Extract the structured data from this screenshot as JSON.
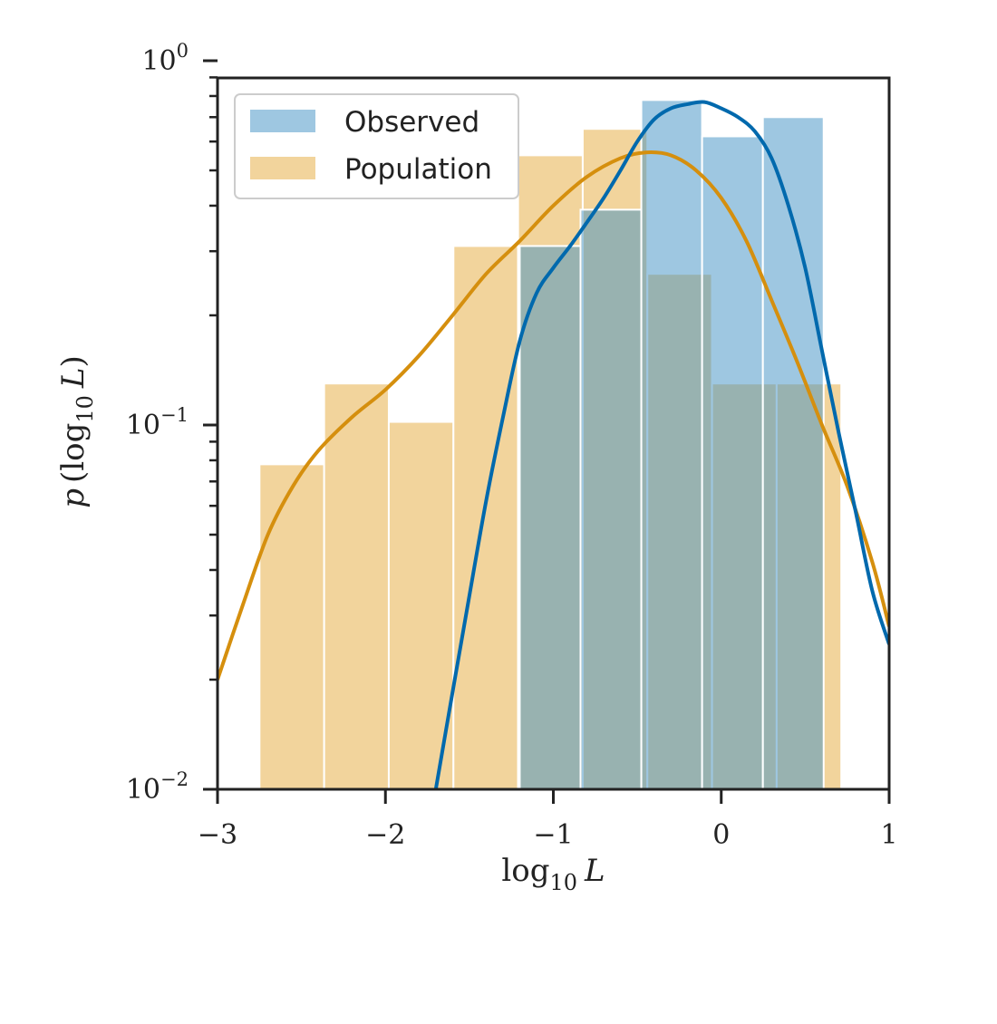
{
  "chart_data": {
    "type": "bar",
    "xlabel": {
      "base": "log",
      "sub": "10",
      "var": "L"
    },
    "ylabel": {
      "func": "p",
      "base": "log",
      "sub": "10",
      "var": "L"
    },
    "xlim": [
      -3,
      1
    ],
    "ylim": [
      0.01,
      1
    ],
    "yscale": "log",
    "grid": false,
    "legend_position": "top-left",
    "x_ticks": [
      {
        "value": -3,
        "label": "−3"
      },
      {
        "value": -2,
        "label": "−2"
      },
      {
        "value": -1,
        "label": "−1"
      },
      {
        "value": 0,
        "label": "0"
      },
      {
        "value": 1,
        "label": "1"
      }
    ],
    "y_ticks": [
      {
        "value": 1,
        "base": "10",
        "exp": "0"
      },
      {
        "value": 0.1,
        "base": "10",
        "exp": "−1"
      },
      {
        "value": 0.01,
        "base": "10",
        "exp": "−2"
      }
    ],
    "series": [
      {
        "name": "Population",
        "kind": "histogram",
        "color": "#e8b04a",
        "opacity": 0.55,
        "bin_edges": [
          -2.75,
          -2.365,
          -1.98,
          -1.595,
          -1.21,
          -0.825,
          -0.44,
          -0.055,
          0.33,
          0.715
        ],
        "values": [
          0.078,
          0.13,
          0.102,
          0.31,
          0.55,
          0.65,
          0.26,
          0.13,
          0.13
        ]
      },
      {
        "name": "Observed",
        "kind": "histogram",
        "color": "#3d8fc4",
        "opacity": 0.5,
        "bin_edges": [
          -1.2,
          -0.838,
          -0.476,
          -0.114,
          0.248,
          0.61
        ],
        "values": [
          0.31,
          0.39,
          0.78,
          0.62,
          0.7
        ]
      }
    ],
    "curves": [
      {
        "name": "Population",
        "color": "#d58f0e",
        "points": [
          [
            -3.0,
            0.02
          ],
          [
            -2.85,
            0.032
          ],
          [
            -2.7,
            0.05
          ],
          [
            -2.55,
            0.068
          ],
          [
            -2.4,
            0.085
          ],
          [
            -2.2,
            0.105
          ],
          [
            -2.0,
            0.125
          ],
          [
            -1.8,
            0.155
          ],
          [
            -1.6,
            0.2
          ],
          [
            -1.4,
            0.26
          ],
          [
            -1.2,
            0.32
          ],
          [
            -1.0,
            0.4
          ],
          [
            -0.8,
            0.48
          ],
          [
            -0.6,
            0.54
          ],
          [
            -0.45,
            0.56
          ],
          [
            -0.3,
            0.55
          ],
          [
            -0.15,
            0.5
          ],
          [
            0.0,
            0.42
          ],
          [
            0.15,
            0.32
          ],
          [
            0.3,
            0.22
          ],
          [
            0.45,
            0.15
          ],
          [
            0.6,
            0.1
          ],
          [
            0.75,
            0.068
          ],
          [
            0.9,
            0.042
          ],
          [
            1.0,
            0.028
          ]
        ]
      },
      {
        "name": "Observed",
        "color": "#0069ad",
        "points": [
          [
            -1.7,
            0.01
          ],
          [
            -1.6,
            0.0185
          ],
          [
            -1.5,
            0.034
          ],
          [
            -1.4,
            0.062
          ],
          [
            -1.3,
            0.105
          ],
          [
            -1.2,
            0.17
          ],
          [
            -1.1,
            0.23
          ],
          [
            -1.0,
            0.27
          ],
          [
            -0.9,
            0.31
          ],
          [
            -0.8,
            0.36
          ],
          [
            -0.7,
            0.42
          ],
          [
            -0.6,
            0.5
          ],
          [
            -0.5,
            0.6
          ],
          [
            -0.4,
            0.69
          ],
          [
            -0.3,
            0.74
          ],
          [
            -0.2,
            0.76
          ],
          [
            -0.1,
            0.77
          ],
          [
            0.0,
            0.74
          ],
          [
            0.1,
            0.7
          ],
          [
            0.2,
            0.64
          ],
          [
            0.3,
            0.54
          ],
          [
            0.4,
            0.4
          ],
          [
            0.5,
            0.27
          ],
          [
            0.6,
            0.16
          ],
          [
            0.7,
            0.095
          ],
          [
            0.8,
            0.058
          ],
          [
            0.9,
            0.035
          ],
          [
            1.0,
            0.025
          ]
        ]
      }
    ],
    "legend": [
      {
        "label": "Observed",
        "color": "#3d8fc4",
        "opacity": 0.5
      },
      {
        "label": "Population",
        "color": "#e8b04a",
        "opacity": 0.55
      }
    ]
  }
}
